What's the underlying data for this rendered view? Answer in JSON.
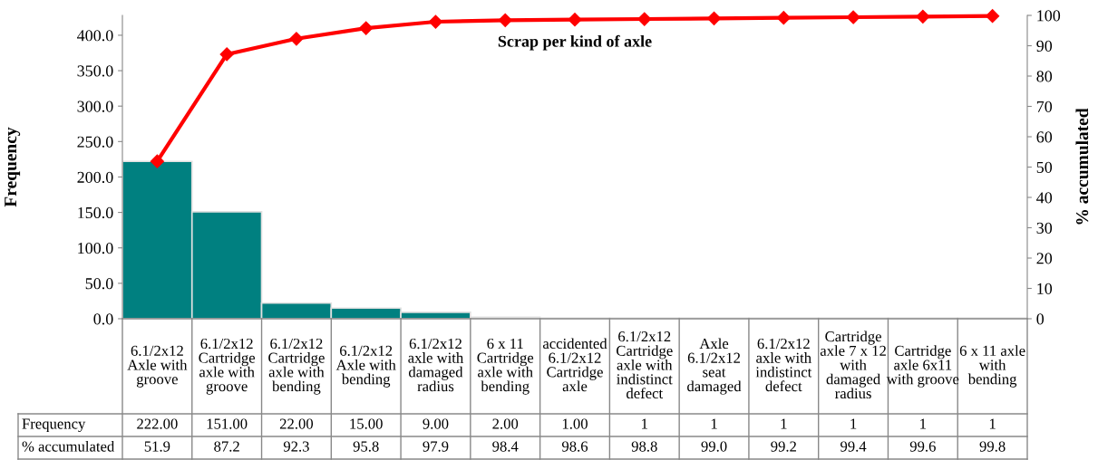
{
  "chart_data": {
    "type": "bar",
    "title": "Scrap per kind of axle",
    "ylabel": "Frequency",
    "y2label": "% accumulated",
    "categories": [
      "6.1/2x12 Axle with groove",
      "6.1/2x12 Cartridge axle with groove",
      "6.1/2x12 Cartridge axle with bending",
      "6.1/2x12 Axle with bending",
      "6.1/2x12 axle with damaged radius",
      "6 x 11 Cartridge axle with bending",
      "accidented 6.1/2x12 Cartridge axle",
      "6.1/2x12 Cartridge axle with indistinct defect",
      "Axle 6.1/2x12 seat damaged",
      "6.1/2x12 axle with indistinct defect",
      "Cartridge axle 7 x 12 with damaged radius",
      "Cartridge axle 6x11 with groove",
      "6 x 11 axle with bending"
    ],
    "series": [
      {
        "color": "#008080",
        "values": [
          222,
          151,
          22,
          15,
          9,
          2,
          1,
          1,
          1,
          1,
          1,
          1,
          1
        ],
        "value_labels": [
          "222.00",
          "151.00",
          "22.00",
          "15.00",
          "9.00",
          "2.00",
          "1.00",
          "1",
          "1",
          "1",
          "1",
          "1",
          "1"
        ]
      },
      {
        "type": "line",
        "axis": "y2",
        "color": "#ff0000",
        "marker": "diamond",
        "values": [
          51.9,
          87.2,
          92.3,
          95.8,
          97.9,
          98.4,
          98.6,
          98.8,
          99.0,
          99.2,
          99.4,
          99.6,
          99.8
        ],
        "value_labels": [
          "51.9",
          "87.2",
          "92.3",
          "95.8",
          "97.9",
          "98.4",
          "98.6",
          "98.8",
          "99.0",
          "99.2",
          "99.4",
          "99.6",
          "99.8"
        ]
      }
    ],
    "ylim": [
      0,
      428
    ],
    "yticks": [
      {
        "value": 0,
        "label": "0.0"
      },
      {
        "value": 50,
        "label": "50.0"
      },
      {
        "value": 100,
        "label": "100.0"
      },
      {
        "value": 150,
        "label": "150.0"
      },
      {
        "value": 200,
        "label": "200.0"
      },
      {
        "value": 250,
        "label": "250.0"
      },
      {
        "value": 300,
        "label": "300.0"
      },
      {
        "value": 350,
        "label": "350.0"
      },
      {
        "value": 400,
        "label": "400.0"
      }
    ],
    "y2lim": [
      0,
      100
    ],
    "y2ticks": [
      0,
      10,
      20,
      30,
      40,
      50,
      60,
      70,
      80,
      90,
      100
    ],
    "annotations": [
      "Frequency",
      "% accumulated"
    ],
    "grid": false,
    "legend": false
  }
}
